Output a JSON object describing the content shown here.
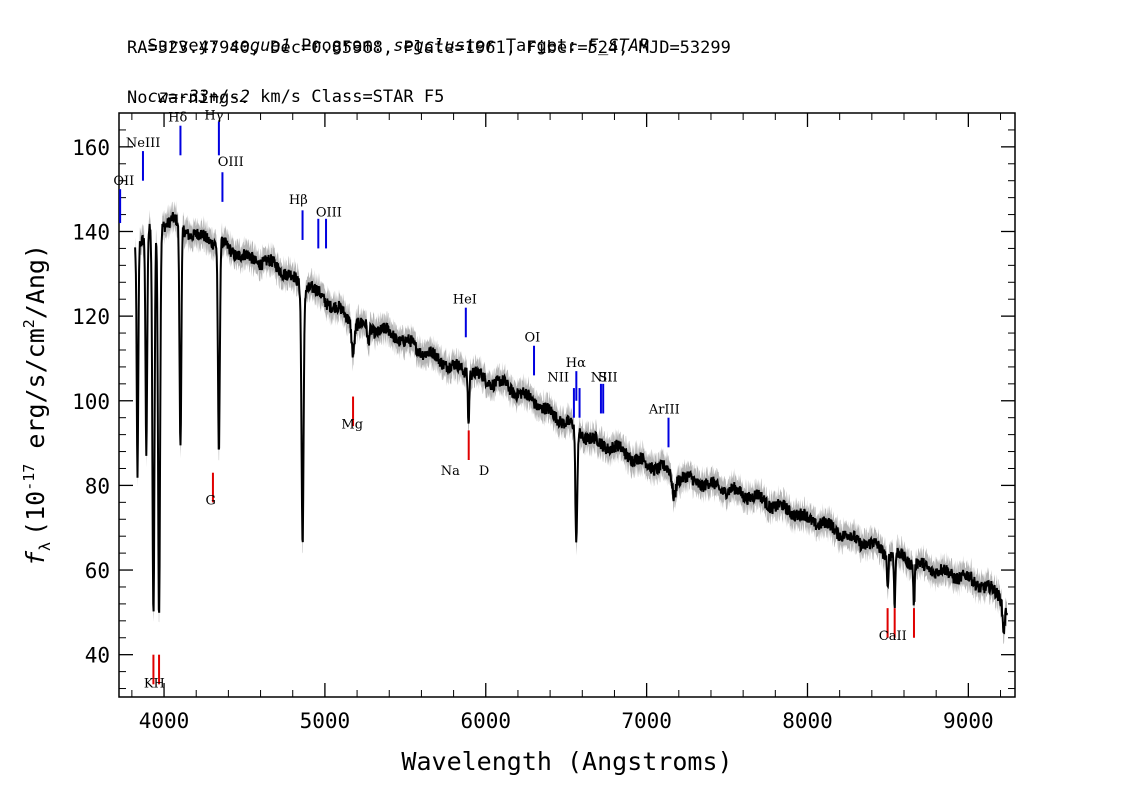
{
  "header": {
    "survey_label": "Survey:",
    "survey": "segue1",
    "program_label": "Program:",
    "program": "segcluster",
    "target_label": "Target:",
    "target": "F_STAR",
    "line2": "RA=323.47940, Dec=0.85968, Plate=1961, Fiber=524, MJD=53299",
    "cz_label": "cz=",
    "cz": "-33+/-2",
    "cz_unit": " km/s Class=STAR F5",
    "line4": "No warnings."
  },
  "chart_data": {
    "type": "line",
    "xlabel": "Wavelength (Angstroms)",
    "ylabel_prefix": "f",
    "ylabel_sub": "λ",
    "ylabel_units": "(10",
    "ylabel_exp": "-17",
    "ylabel_rest": " erg/s/cm",
    "ylabel_exp2": "2",
    "ylabel_tail": "/Ang)",
    "xlim": [
      3720,
      9290
    ],
    "ylim": [
      30,
      168
    ],
    "xticks": [
      4000,
      5000,
      6000,
      7000,
      8000,
      9000
    ],
    "yticks": [
      40,
      60,
      80,
      100,
      120,
      140,
      160
    ],
    "colors": {
      "flux": "#000000",
      "error": "#b4b4b4",
      "emission": "#0000e0",
      "absorption": "#e00000"
    },
    "continuum": [
      [
        3820,
        136
      ],
      [
        3850,
        138
      ],
      [
        3900,
        140
      ],
      [
        3950,
        141
      ],
      [
        4000,
        142
      ],
      [
        4050,
        143
      ],
      [
        4100,
        141
      ],
      [
        4150,
        140
      ],
      [
        4200,
        139
      ],
      [
        4300,
        138
      ],
      [
        4400,
        136
      ],
      [
        4500,
        134
      ],
      [
        4600,
        133
      ],
      [
        4700,
        132
      ],
      [
        4800,
        129
      ],
      [
        4850,
        127
      ],
      [
        4900,
        127
      ],
      [
        5000,
        124
      ],
      [
        5100,
        121
      ],
      [
        5200,
        118
      ],
      [
        5300,
        117
      ],
      [
        5400,
        116
      ],
      [
        5500,
        114
      ],
      [
        5600,
        112
      ],
      [
        5700,
        110
      ],
      [
        5800,
        108
      ],
      [
        5900,
        107
      ],
      [
        6000,
        105
      ],
      [
        6100,
        104
      ],
      [
        6200,
        102
      ],
      [
        6300,
        100
      ],
      [
        6400,
        97
      ],
      [
        6500,
        95
      ],
      [
        6600,
        92
      ],
      [
        6700,
        90
      ],
      [
        6800,
        89
      ],
      [
        6900,
        87
      ],
      [
        7000,
        85
      ],
      [
        7100,
        84
      ],
      [
        7200,
        82
      ],
      [
        7300,
        81
      ],
      [
        7400,
        80
      ],
      [
        7500,
        79
      ],
      [
        7600,
        78
      ],
      [
        7700,
        77
      ],
      [
        7800,
        75
      ],
      [
        7900,
        74
      ],
      [
        8000,
        72
      ],
      [
        8100,
        71
      ],
      [
        8200,
        69
      ],
      [
        8300,
        67
      ],
      [
        8400,
        66
      ],
      [
        8500,
        64
      ],
      [
        8600,
        63
      ],
      [
        8700,
        61
      ],
      [
        8800,
        60
      ],
      [
        8900,
        59
      ],
      [
        9000,
        58
      ],
      [
        9100,
        56
      ],
      [
        9200,
        54
      ],
      [
        9240,
        51
      ]
    ],
    "absorption_features": [
      {
        "x": 3835,
        "depth": 54,
        "w": 7
      },
      {
        "x": 3890,
        "depth": 52,
        "w": 7
      },
      {
        "x": 3934,
        "depth": 93,
        "w": 9
      },
      {
        "x": 3969,
        "depth": 92,
        "w": 9
      },
      {
        "x": 4102,
        "depth": 52,
        "w": 8
      },
      {
        "x": 4341,
        "depth": 50,
        "w": 8
      },
      {
        "x": 4861,
        "depth": 60,
        "w": 9
      },
      {
        "x": 5175,
        "depth": 7,
        "w": 12
      },
      {
        "x": 5270,
        "depth": 4,
        "w": 8
      },
      {
        "x": 5893,
        "depth": 12,
        "w": 6
      },
      {
        "x": 6563,
        "depth": 27,
        "w": 8
      },
      {
        "x": 7170,
        "depth": 5,
        "w": 14
      },
      {
        "x": 8498,
        "depth": 8,
        "w": 6
      },
      {
        "x": 8542,
        "depth": 12,
        "w": 6
      },
      {
        "x": 8662,
        "depth": 10,
        "w": 6
      },
      {
        "x": 9220,
        "depth": 6,
        "w": 10
      }
    ],
    "emission_lines": [
      {
        "name": "OII",
        "x": 3727,
        "y_top": 150,
        "y_bot": 142
      },
      {
        "name": "NeIII",
        "x": 3869,
        "y_top": 159,
        "y_bot": 152
      },
      {
        "name": "Hδ",
        "x": 4102,
        "y_top": 165,
        "y_bot": 158
      },
      {
        "name": "Hγ",
        "x": 4341,
        "y_top": 166,
        "y_bot": 158
      },
      {
        "name": "OIII",
        "x": 4363,
        "y_top": 154,
        "y_bot": 147
      },
      {
        "name": "Hβ",
        "x": 4861,
        "y_top": 145,
        "y_bot": 138
      },
      {
        "name": "OIII",
        "x": 4959,
        "y_top": 143,
        "y_bot": 136
      },
      {
        "name": "OIII",
        "x": 5007,
        "y_top": 143,
        "y_bot": 136
      },
      {
        "name": "HeI",
        "x": 5876,
        "y_top": 122,
        "y_bot": 115
      },
      {
        "name": "OI",
        "x": 6300,
        "y_top": 113,
        "y_bot": 106
      },
      {
        "name": "NII",
        "x": 6548,
        "y_top": 103,
        "y_bot": 96
      },
      {
        "name": "Hα",
        "x": 6563,
        "y_top": 107,
        "y_bot": 100
      },
      {
        "name": "NII",
        "x": 6583,
        "y_top": 103,
        "y_bot": 96
      },
      {
        "name": "SII",
        "x": 6716,
        "y_top": 104,
        "y_bot": 97
      },
      {
        "name": "SII",
        "x": 6730,
        "y_top": 104,
        "y_bot": 97
      },
      {
        "name": "ArIII",
        "x": 7136,
        "y_top": 96,
        "y_bot": 89
      }
    ],
    "absorption_lines": [
      {
        "name": "K",
        "x": 3934,
        "y_top": 40,
        "y_bot": 33
      },
      {
        "name": "H",
        "x": 3969,
        "y_top": 40,
        "y_bot": 33
      },
      {
        "name": "G",
        "x": 4304,
        "y_top": 83,
        "y_bot": 76
      },
      {
        "name": "Mg",
        "x": 5175,
        "y_top": 101,
        "y_bot": 94
      },
      {
        "name": "Na",
        "x": 5894,
        "y_top": 93,
        "y_bot": 86
      },
      {
        "name": "CaII",
        "x": 8498,
        "y_top": 51,
        "y_bot": 44
      },
      {
        "name": "CaII",
        "x": 8542,
        "y_top": 51,
        "y_bot": 44
      },
      {
        "name": "CaII",
        "x": 8662,
        "y_top": 51,
        "y_bot": 44
      }
    ],
    "labels": [
      {
        "text": "OII",
        "x": 3750,
        "y": 151,
        "kind": "emission"
      },
      {
        "text": "NeIII",
        "x": 3870,
        "y": 160,
        "kind": "emission"
      },
      {
        "text": "Hδ",
        "x": 4085,
        "y": 166,
        "kind": "emission"
      },
      {
        "text": "Hγ",
        "x": 4310,
        "y": 166.5,
        "kind": "emission"
      },
      {
        "text": "OIII",
        "x": 4415,
        "y": 155.5,
        "kind": "emission"
      },
      {
        "text": "Hβ",
        "x": 4835,
        "y": 146.5,
        "kind": "emission"
      },
      {
        "text": "OIII",
        "x": 5025,
        "y": 143.5,
        "kind": "emission"
      },
      {
        "text": "HeI",
        "x": 5870,
        "y": 123,
        "kind": "emission"
      },
      {
        "text": "OI",
        "x": 6290,
        "y": 114,
        "kind": "emission"
      },
      {
        "text": "NII",
        "x": 6450,
        "y": 104.5,
        "kind": "emission"
      },
      {
        "text": "Hα",
        "x": 6560,
        "y": 108,
        "kind": "emission"
      },
      {
        "text": "NII",
        "x": 6720,
        "y": 104.5,
        "kind": "emission"
      },
      {
        "text": "SII",
        "x": 6760,
        "y": 104.5,
        "kind": "emission"
      },
      {
        "text": "ArIII",
        "x": 7110,
        "y": 97,
        "kind": "emission"
      },
      {
        "text": "KH",
        "x": 3940,
        "y": 32.2,
        "kind": "absorption"
      },
      {
        "text": "G",
        "x": 4290,
        "y": 75.5,
        "kind": "absorption"
      },
      {
        "text": "Mg",
        "x": 5170,
        "y": 93.5,
        "kind": "absorption"
      },
      {
        "text": "Na",
        "x": 5780,
        "y": 82.5,
        "kind": "absorption"
      },
      {
        "text": "D",
        "x": 5990,
        "y": 82.5,
        "kind": "absorption"
      },
      {
        "text": "CaII",
        "x": 8530,
        "y": 43.5,
        "kind": "absorption"
      }
    ]
  }
}
